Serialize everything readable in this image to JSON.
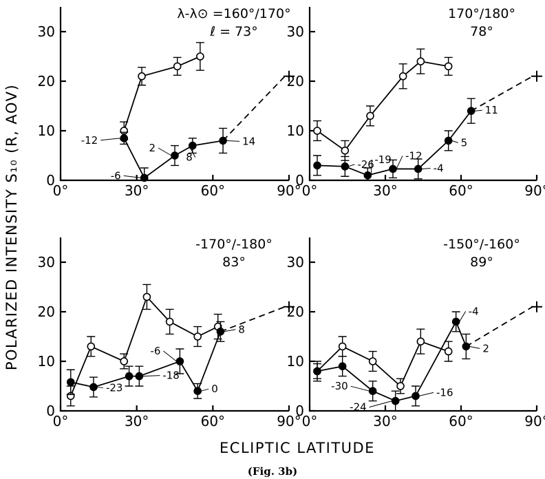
{
  "y_axis_label": "POLARIZED INTENSITY  S₁₀ (R, AOV)",
  "x_axis_label": "ECLIPTIC   LATITUDE",
  "caption": "(Fig. 3b)",
  "chart_data": [
    {
      "type": "line",
      "header_line1": "λ-λ⊙ =160°/170°",
      "header_line2": "ℓ = 73°",
      "xticks": [
        "0°",
        "30°",
        "60°",
        "90°"
      ],
      "yticks": [
        "0",
        "10",
        "20",
        "30"
      ],
      "xlim": [
        0,
        90
      ],
      "ylim": [
        0,
        35
      ],
      "series": [
        {
          "marker": "open",
          "points": [
            {
              "x": 25,
              "y": 10,
              "err": 1.8
            },
            {
              "x": 32,
              "y": 21,
              "err": 1.8
            },
            {
              "x": 46,
              "y": 23,
              "err": 1.8
            },
            {
              "x": 55,
              "y": 25,
              "err": 2.8
            }
          ]
        },
        {
          "marker": "filled",
          "points": [
            {
              "x": 25,
              "y": 8.5,
              "err": 1.2,
              "label": "-12"
            },
            {
              "x": 33,
              "y": 0.5,
              "err": 2,
              "label": "-6"
            },
            {
              "x": 45,
              "y": 5,
              "err": 2,
              "label": "2"
            },
            {
              "x": 52,
              "y": 7,
              "err": 1.5,
              "label": "8"
            },
            {
              "x": 64,
              "y": 8,
              "err": 2.5,
              "label": "14"
            }
          ]
        }
      ],
      "extrapolation": {
        "from": {
          "x": 64,
          "y": 8
        },
        "to": {
          "x": 90,
          "y": 21
        }
      }
    },
    {
      "type": "line",
      "header_line1": "170°/180°",
      "header_line2": "78°",
      "xticks": [
        "0°",
        "30°",
        "60°",
        "90°"
      ],
      "yticks": [
        "0",
        "10",
        "20",
        "30"
      ],
      "xlim": [
        0,
        90
      ],
      "ylim": [
        0,
        35
      ],
      "series": [
        {
          "marker": "open",
          "points": [
            {
              "x": 3,
              "y": 10,
              "err": 2
            },
            {
              "x": 14,
              "y": 6,
              "err": 2
            },
            {
              "x": 24,
              "y": 13,
              "err": 2
            },
            {
              "x": 37,
              "y": 21,
              "err": 2.5
            },
            {
              "x": 44,
              "y": 24,
              "err": 2.5
            },
            {
              "x": 55,
              "y": 23,
              "err": 1.8
            }
          ]
        },
        {
          "marker": "filled",
          "points": [
            {
              "x": 3,
              "y": 3,
              "err": 2
            },
            {
              "x": 14,
              "y": 2.8,
              "err": 2,
              "label": "-26"
            },
            {
              "x": 23,
              "y": 1,
              "err": 1.5,
              "label": "-19"
            },
            {
              "x": 33,
              "y": 2.3,
              "err": 1.8,
              "label": "-12"
            },
            {
              "x": 43,
              "y": 2.3,
              "err": 2,
              "label": "-4"
            },
            {
              "x": 55,
              "y": 8,
              "err": 2,
              "label": "5"
            },
            {
              "x": 64,
              "y": 14,
              "err": 2.5,
              "label": "11"
            }
          ]
        }
      ],
      "extrapolation": {
        "from": {
          "x": 64,
          "y": 14
        },
        "to": {
          "x": 90,
          "y": 21
        }
      }
    },
    {
      "type": "line",
      "header_line1": "-170°/-180°",
      "header_line2": "83°",
      "xticks": [
        "0°",
        "30°",
        "60°",
        "90°"
      ],
      "yticks": [
        "0",
        "10",
        "20",
        "30"
      ],
      "xlim": [
        0,
        90
      ],
      "ylim": [
        0,
        35
      ],
      "series": [
        {
          "marker": "open",
          "points": [
            {
              "x": 4,
              "y": 3,
              "err": 2
            },
            {
              "x": 12,
              "y": 13,
              "err": 2
            },
            {
              "x": 25,
              "y": 10,
              "err": 1.5
            },
            {
              "x": 34,
              "y": 23,
              "err": 2.5
            },
            {
              "x": 43,
              "y": 18,
              "err": 2.5
            },
            {
              "x": 54,
              "y": 15,
              "err": 2
            },
            {
              "x": 62,
              "y": 17,
              "err": 2.5
            }
          ]
        },
        {
          "marker": "filled",
          "points": [
            {
              "x": 4,
              "y": 5.8,
              "err": 2.5
            },
            {
              "x": 13,
              "y": 4.8,
              "err": 2,
              "label": "-23"
            },
            {
              "x": 27,
              "y": 7,
              "err": 2
            },
            {
              "x": 31,
              "y": 7,
              "err": 2,
              "label": "-18"
            },
            {
              "x": 47,
              "y": 10,
              "err": 2.5,
              "label": "-6"
            },
            {
              "x": 54,
              "y": 4,
              "err": 1.5,
              "label": "0"
            },
            {
              "x": 63,
              "y": 16,
              "err": 2,
              "label": "8"
            }
          ]
        }
      ],
      "extrapolation": {
        "from": {
          "x": 63,
          "y": 16
        },
        "to": {
          "x": 90,
          "y": 21
        }
      }
    },
    {
      "type": "line",
      "header_line1": "-150°/-160°",
      "header_line2": "89°",
      "xticks": [
        "0°",
        "30°",
        "60°",
        "90°"
      ],
      "yticks": [
        "0",
        "10",
        "20",
        "30"
      ],
      "xlim": [
        0,
        90
      ],
      "ylim": [
        0,
        35
      ],
      "series": [
        {
          "marker": "open",
          "points": [
            {
              "x": 3,
              "y": 8,
              "err": 1.5
            },
            {
              "x": 13,
              "y": 13,
              "err": 2
            },
            {
              "x": 25,
              "y": 10,
              "err": 2
            },
            {
              "x": 36,
              "y": 5,
              "err": 1.5
            },
            {
              "x": 44,
              "y": 14,
              "err": 2.5
            },
            {
              "x": 55,
              "y": 12,
              "err": 2
            }
          ]
        },
        {
          "marker": "filled",
          "points": [
            {
              "x": 3,
              "y": 8,
              "err": 2
            },
            {
              "x": 13,
              "y": 9,
              "err": 2
            },
            {
              "x": 25,
              "y": 4,
              "err": 2,
              "label": "-30"
            },
            {
              "x": 34,
              "y": 2,
              "err": 2,
              "label": "-24"
            },
            {
              "x": 42,
              "y": 3,
              "err": 2,
              "label": "-16"
            },
            {
              "x": 58,
              "y": 18,
              "err": 2,
              "label": "-4"
            },
            {
              "x": 62,
              "y": 13,
              "err": 2.5,
              "label": "2"
            }
          ]
        }
      ],
      "extrapolation": {
        "from": {
          "x": 62,
          "y": 13
        },
        "to": {
          "x": 90,
          "y": 21
        }
      }
    }
  ]
}
